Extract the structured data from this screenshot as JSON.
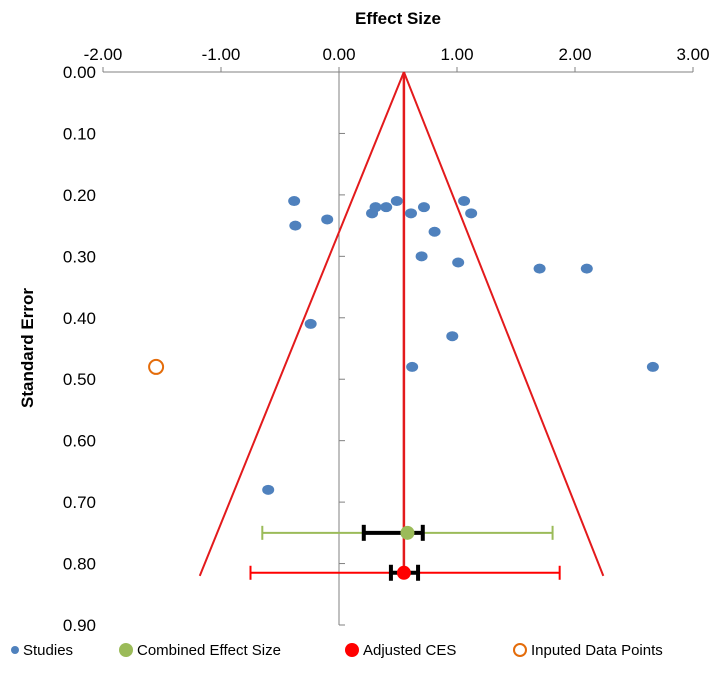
{
  "chart_data": {
    "type": "scatter",
    "title": "",
    "xlabel": "Effect Size",
    "ylabel": "Standard Error",
    "x_axis_position": "top",
    "y_axis_reversed": true,
    "xlim": [
      -2.0,
      3.0
    ],
    "ylim": [
      0.0,
      0.9
    ],
    "xticks": [
      "-2.00",
      "-1.00",
      "0.00",
      "1.00",
      "2.00",
      "3.00"
    ],
    "yticks": [
      "0.00",
      "0.10",
      "0.20",
      "0.30",
      "0.40",
      "0.50",
      "0.60",
      "0.70",
      "0.80",
      "0.90"
    ],
    "grid": false,
    "legend_position": "bottom",
    "series": [
      {
        "name": "Studies",
        "color": "#4f81bd",
        "marker": "filled-circle",
        "points": [
          [
            -0.38,
            0.21
          ],
          [
            -0.37,
            0.25
          ],
          [
            -0.1,
            0.24
          ],
          [
            0.28,
            0.23
          ],
          [
            0.31,
            0.22
          ],
          [
            0.4,
            0.22
          ],
          [
            0.49,
            0.21
          ],
          [
            0.61,
            0.23
          ],
          [
            0.72,
            0.22
          ],
          [
            0.81,
            0.26
          ],
          [
            1.06,
            0.21
          ],
          [
            1.12,
            0.23
          ],
          [
            0.7,
            0.3
          ],
          [
            1.01,
            0.31
          ],
          [
            1.7,
            0.32
          ],
          [
            2.1,
            0.32
          ],
          [
            -0.24,
            0.41
          ],
          [
            0.96,
            0.43
          ],
          [
            0.62,
            0.48
          ],
          [
            2.66,
            0.48
          ],
          [
            -0.6,
            0.68
          ]
        ]
      },
      {
        "name": "Combined Effect Size",
        "color": "#9bbb59",
        "marker": "filled-circle",
        "points": [
          [
            0.58,
            0.75
          ]
        ],
        "ci_95": [
          -0.65,
          1.81
        ],
        "ci_inner": [
          0.21,
          0.71
        ]
      },
      {
        "name": "Adjusted CES",
        "color": "#ff0000",
        "marker": "filled-circle",
        "points": [
          [
            0.55,
            0.815
          ]
        ],
        "ci_95": [
          -0.75,
          1.87
        ],
        "ci_inner": [
          0.44,
          0.67
        ]
      },
      {
        "name": "Inputed Data Points",
        "color": "#e46c0a",
        "marker": "open-circle",
        "points": [
          [
            -1.55,
            0.48
          ]
        ]
      }
    ],
    "funnel": {
      "color": "#e31a1c",
      "apex": [
        0.55,
        0.0
      ],
      "base_left": [
        -1.18,
        0.82
      ],
      "base_right": [
        2.24,
        0.82
      ],
      "center_line_x": 0.55
    }
  }
}
